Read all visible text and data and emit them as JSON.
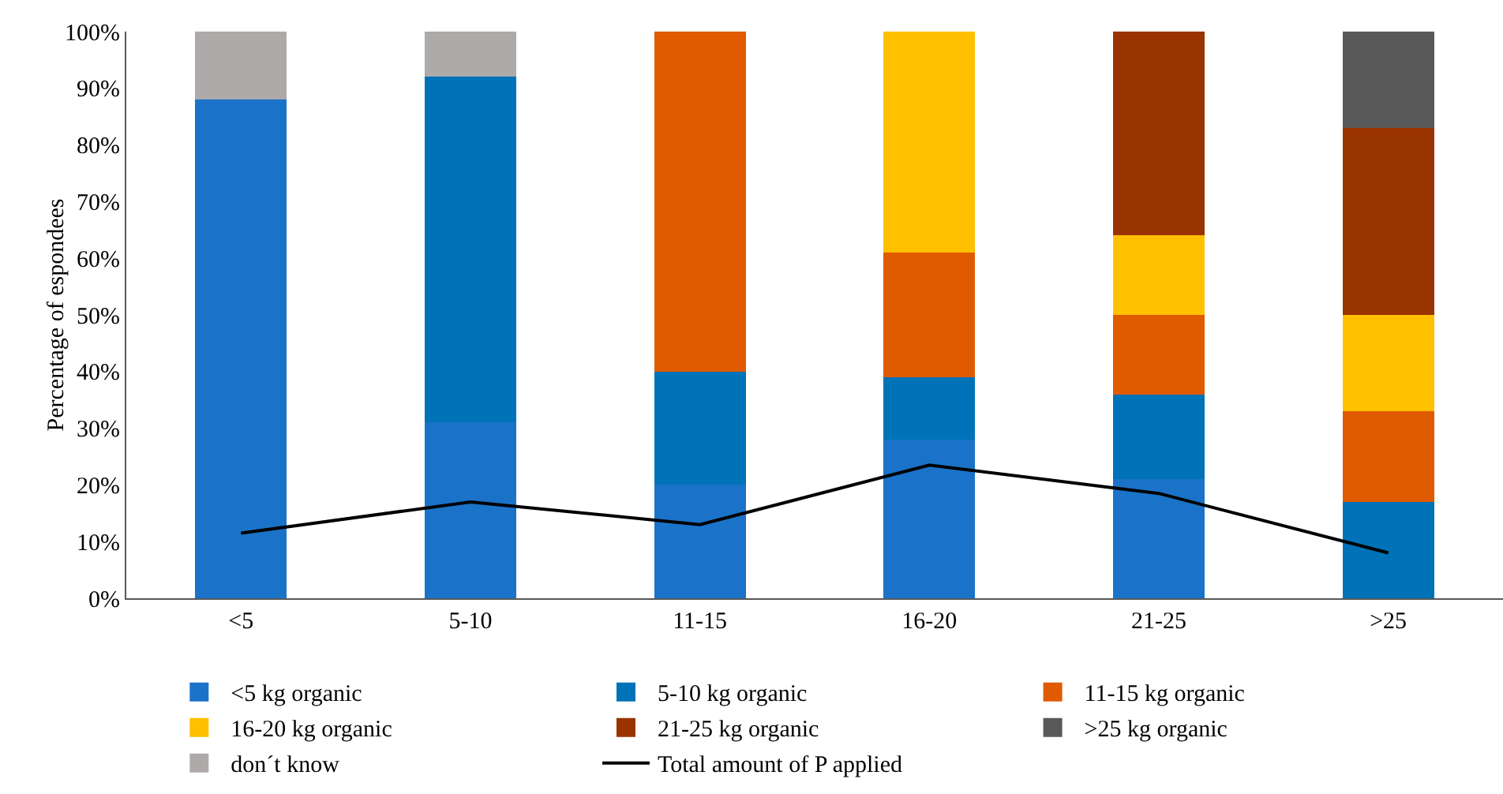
{
  "chart_data": {
    "type": "bar",
    "stacked": true,
    "ylabel": "Percentage of espondees",
    "categories": [
      "<5",
      "5-10",
      "11-15",
      "16-20",
      "21-25",
      ">25"
    ],
    "series": [
      {
        "name": "<5 kg organic",
        "color": "#1a73c8",
        "values": [
          88,
          31,
          20,
          28,
          21,
          0
        ]
      },
      {
        "name": "5-10 kg organic",
        "color": "#0072b8",
        "values": [
          0,
          61,
          20,
          11,
          15,
          17
        ]
      },
      {
        "name": "11-15 kg organic",
        "color": "#e05a00",
        "values": [
          0,
          0,
          60,
          22,
          14,
          16
        ]
      },
      {
        "name": "16-20 kg organic",
        "color": "#ffc000",
        "values": [
          0,
          0,
          0,
          39,
          14,
          17
        ]
      },
      {
        "name": "21-25 kg organic",
        "color": "#993300",
        "values": [
          0,
          0,
          0,
          0,
          36,
          33
        ]
      },
      {
        "name": ">25 kg organic",
        "color": "#595959",
        "values": [
          0,
          0,
          0,
          0,
          0,
          17
        ]
      },
      {
        "name": "don´t know",
        "color": "#aeaaaa",
        "values": [
          12,
          8,
          0,
          0,
          0,
          0
        ]
      },
      {
        "name": "Total amount of P applied",
        "type": "line",
        "color": "#000000",
        "values": [
          11.5,
          17,
          13,
          23.5,
          18.5,
          8
        ]
      }
    ],
    "ylim": [
      0,
      100
    ],
    "yticks": [
      {
        "value": 0,
        "label": "0%"
      },
      {
        "value": 10,
        "label": "10%"
      },
      {
        "value": 20,
        "label": "20%"
      },
      {
        "value": 30,
        "label": "30%"
      },
      {
        "value": 40,
        "label": "40%"
      },
      {
        "value": 50,
        "label": "50%"
      },
      {
        "value": 60,
        "label": "60%"
      },
      {
        "value": 70,
        "label": "70%"
      },
      {
        "value": 80,
        "label": "80%"
      },
      {
        "value": 90,
        "label": "90%"
      },
      {
        "value": 100,
        "label": "100%"
      }
    ],
    "grid": false,
    "legend": "bottom",
    "marker": "none",
    "line_style": "solid"
  }
}
